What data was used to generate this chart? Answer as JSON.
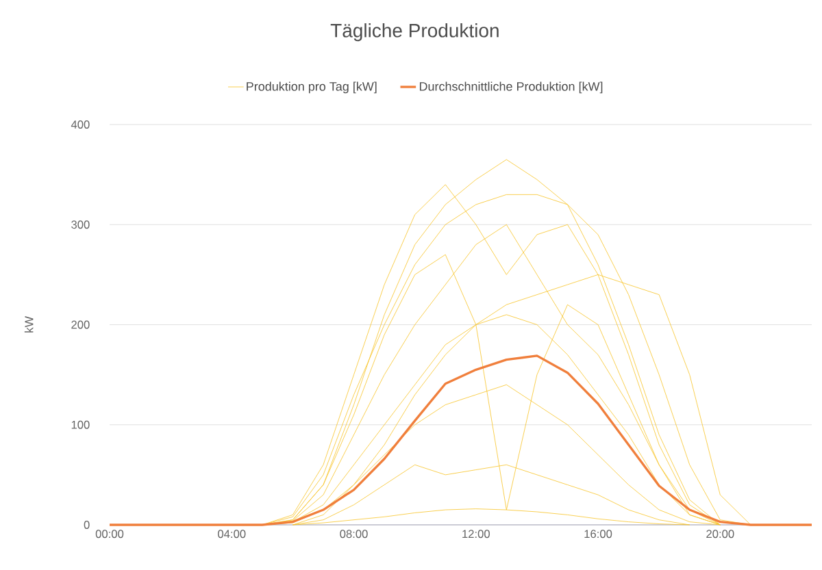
{
  "chart_data": {
    "type": "line",
    "title": "Tägliche Produktion",
    "ylabel": "kW",
    "x": [
      0,
      1,
      2,
      3,
      4,
      5,
      6,
      7,
      8,
      9,
      10,
      11,
      12,
      13,
      14,
      15,
      16,
      17,
      18,
      19,
      20,
      21,
      22,
      23
    ],
    "xlim": [
      0,
      23
    ],
    "ylim": [
      0,
      400
    ],
    "xticks": [
      {
        "value": 0,
        "label": "00:00"
      },
      {
        "value": 4,
        "label": "04:00"
      },
      {
        "value": 8,
        "label": "08:00"
      },
      {
        "value": 12,
        "label": "12:00"
      },
      {
        "value": 16,
        "label": "16:00"
      },
      {
        "value": 20,
        "label": "20:00"
      }
    ],
    "yticks": [
      0,
      100,
      200,
      300,
      400
    ],
    "grid": "y",
    "legend": "top",
    "marker": "none",
    "line_style": "solid",
    "series": [
      {
        "name": "Produktion pro Tag [kW]",
        "color": "#f7c325",
        "values": [
          null,
          null,
          null,
          null,
          null,
          0,
          5,
          40,
          120,
          210,
          280,
          320,
          345,
          365,
          345,
          320,
          260,
          180,
          90,
          25,
          0,
          null,
          null,
          null
        ]
      },
      {
        "color": "#f7c325",
        "values": [
          null,
          null,
          null,
          null,
          null,
          0,
          10,
          60,
          150,
          240,
          310,
          340,
          300,
          250,
          290,
          300,
          250,
          170,
          80,
          20,
          0,
          null,
          null,
          null
        ]
      },
      {
        "color": "#f7c325",
        "values": [
          null,
          null,
          null,
          null,
          null,
          null,
          0,
          2,
          5,
          8,
          12,
          15,
          16,
          15,
          13,
          10,
          6,
          3,
          1,
          0,
          null,
          null,
          null,
          null
        ]
      },
      {
        "color": "#f7c325",
        "values": [
          null,
          null,
          null,
          null,
          null,
          0,
          3,
          20,
          60,
          100,
          140,
          180,
          200,
          210,
          200,
          170,
          130,
          90,
          40,
          10,
          0,
          null,
          null,
          null
        ]
      },
      {
        "color": "#f7c325",
        "values": [
          null,
          null,
          null,
          null,
          null,
          0,
          5,
          40,
          110,
          190,
          250,
          270,
          200,
          15,
          150,
          220,
          200,
          130,
          60,
          10,
          0,
          null,
          null,
          null
        ]
      },
      {
        "color": "#f7c325",
        "values": [
          null,
          null,
          null,
          null,
          null,
          null,
          0,
          10,
          40,
          80,
          130,
          170,
          200,
          220,
          230,
          240,
          250,
          240,
          230,
          150,
          30,
          0,
          null,
          null
        ]
      },
      {
        "color": "#f7c325",
        "values": [
          null,
          null,
          null,
          null,
          null,
          0,
          2,
          15,
          40,
          70,
          100,
          120,
          130,
          140,
          120,
          100,
          70,
          40,
          15,
          3,
          0,
          null,
          null,
          null
        ]
      },
      {
        "color": "#f7c325",
        "values": [
          null,
          null,
          null,
          null,
          null,
          0,
          8,
          50,
          130,
          200,
          260,
          300,
          320,
          330,
          330,
          320,
          290,
          230,
          150,
          60,
          5,
          0,
          null,
          null
        ]
      },
      {
        "color": "#f7c325",
        "values": [
          null,
          null,
          null,
          null,
          null,
          null,
          0,
          5,
          20,
          40,
          60,
          50,
          55,
          60,
          50,
          40,
          30,
          15,
          5,
          0,
          null,
          null,
          null,
          null
        ]
      },
      {
        "color": "#f7c325",
        "values": [
          null,
          null,
          null,
          null,
          null,
          0,
          4,
          30,
          90,
          150,
          200,
          240,
          280,
          300,
          250,
          200,
          170,
          120,
          60,
          15,
          0,
          null,
          null,
          null
        ]
      },
      {
        "name": "Durchschnittliche Produktion [kW]",
        "color": "#f07f3c",
        "values": [
          0,
          0,
          0,
          0,
          0,
          0,
          3,
          15,
          35,
          66,
          104,
          141,
          155,
          165,
          169,
          152,
          121,
          80,
          39,
          15,
          3,
          0,
          0,
          0
        ]
      }
    ]
  }
}
